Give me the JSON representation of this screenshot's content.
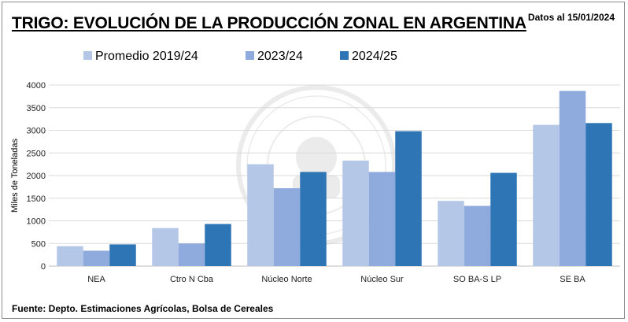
{
  "title": "TRIGO: EVOLUCIÓN DE LA PRODUCCIÓN ZONAL EN ARGENTINA",
  "date_note": "Datos al 15/01/2024",
  "source": "Fuente: Depto. Estimaciones Agrícolas, Bolsa de Cereales",
  "watermark": "Constantia · et · Labore · Buenos Aires · 1854",
  "chart_data": {
    "type": "bar",
    "title": "TRIGO: EVOLUCIÓN DE LA PRODUCCIÓN ZONAL EN ARGENTINA",
    "xlabel": "",
    "ylabel": "Miles de Toneladas",
    "ylim": [
      0,
      4000
    ],
    "yticks": [
      0,
      500,
      1000,
      1500,
      2000,
      2500,
      3000,
      3500,
      4000
    ],
    "grid": true,
    "legend_position": "top",
    "categories": [
      "NEA",
      "Ctro N Cba",
      "Núcleo Norte",
      "Núcleo Sur",
      "SO BA-S LP",
      "SE BA"
    ],
    "series": [
      {
        "name": "Promedio 2019/24",
        "color": "#b4c7e7",
        "values": [
          440,
          840,
          2250,
          2330,
          1440,
          3120
        ]
      },
      {
        "name": "2023/24",
        "color": "#8faadc",
        "values": [
          340,
          500,
          1720,
          2080,
          1330,
          3870
        ]
      },
      {
        "name": "2024/25",
        "color": "#2e75b6",
        "values": [
          480,
          930,
          2080,
          2980,
          2060,
          3160
        ]
      }
    ]
  }
}
